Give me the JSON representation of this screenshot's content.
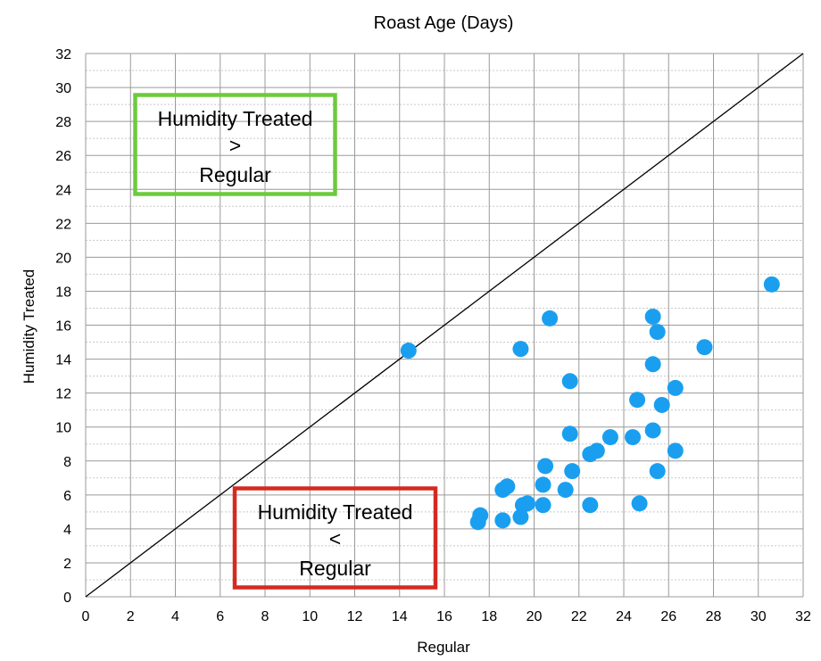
{
  "chart_data": {
    "type": "scatter",
    "title": "Roast Age (Days)",
    "xlabel": "Regular",
    "ylabel": "Humidity Treated",
    "xlim": [
      0,
      32
    ],
    "ylim": [
      0,
      32
    ],
    "xticks": [
      0,
      2,
      4,
      6,
      8,
      10,
      12,
      14,
      16,
      18,
      20,
      22,
      24,
      26,
      28,
      30,
      32
    ],
    "yticks": [
      0,
      2,
      4,
      6,
      8,
      10,
      12,
      14,
      16,
      18,
      20,
      22,
      24,
      26,
      28,
      30,
      32
    ],
    "grid": true,
    "reference_line": {
      "from": [
        0,
        0
      ],
      "to": [
        32,
        32
      ],
      "color": "#000000"
    },
    "point_color": "#1a9ff0",
    "series": [
      {
        "points": [
          [
            14.4,
            14.5
          ],
          [
            17.5,
            4.4
          ],
          [
            17.6,
            4.8
          ],
          [
            18.6,
            4.5
          ],
          [
            18.6,
            6.3
          ],
          [
            18.8,
            6.5
          ],
          [
            19.4,
            14.6
          ],
          [
            19.4,
            4.7
          ],
          [
            19.5,
            5.4
          ],
          [
            19.7,
            5.5
          ],
          [
            20.4,
            5.4
          ],
          [
            20.4,
            6.6
          ],
          [
            20.5,
            7.7
          ],
          [
            20.7,
            16.4
          ],
          [
            21.4,
            6.3
          ],
          [
            21.6,
            12.7
          ],
          [
            21.6,
            9.6
          ],
          [
            21.7,
            7.4
          ],
          [
            22.5,
            5.4
          ],
          [
            22.5,
            8.4
          ],
          [
            22.8,
            8.6
          ],
          [
            23.4,
            9.4
          ],
          [
            24.4,
            9.4
          ],
          [
            24.6,
            11.6
          ],
          [
            24.7,
            5.5
          ],
          [
            25.3,
            16.5
          ],
          [
            25.3,
            13.7
          ],
          [
            25.3,
            9.8
          ],
          [
            25.5,
            15.6
          ],
          [
            25.5,
            7.4
          ],
          [
            25.7,
            11.3
          ],
          [
            26.3,
            12.3
          ],
          [
            26.3,
            8.6
          ],
          [
            27.6,
            14.7
          ],
          [
            30.6,
            18.4
          ]
        ]
      }
    ],
    "annotations": [
      {
        "lines": [
          "Humidity Treated",
          ">",
          "Regular"
        ],
        "border_color": "#6ccb3c"
      },
      {
        "lines": [
          "Humidity Treated",
          "<",
          "Regular"
        ],
        "border_color": "#d42a20"
      }
    ]
  }
}
